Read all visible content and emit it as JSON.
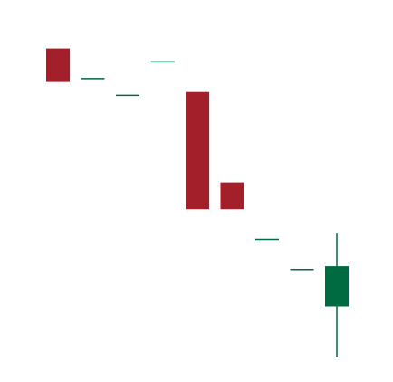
{
  "chart_data": {
    "type": "candlestick",
    "title": "",
    "xlabel": "",
    "ylabel": "",
    "grid": false,
    "legend": "none",
    "ylim": [
      0,
      100
    ],
    "colors": {
      "down": "#a3202b",
      "up": "#006a41"
    },
    "candles": [
      {
        "open": 92,
        "high": 92,
        "low": 82,
        "close": 82
      },
      {
        "open": 83,
        "high": 83,
        "low": 83,
        "close": 83
      },
      {
        "open": 78,
        "high": 78,
        "low": 78,
        "close": 78
      },
      {
        "open": 88,
        "high": 88,
        "low": 88,
        "close": 88
      },
      {
        "open": 79,
        "high": 79,
        "low": 44,
        "close": 44
      },
      {
        "open": 52,
        "high": 52,
        "low": 44,
        "close": 44
      },
      {
        "open": 35,
        "high": 35,
        "low": 35,
        "close": 35
      },
      {
        "open": 26,
        "high": 26,
        "low": 26,
        "close": 26
      },
      {
        "open": 15,
        "high": 37,
        "low": 0,
        "close": 27
      }
    ]
  }
}
